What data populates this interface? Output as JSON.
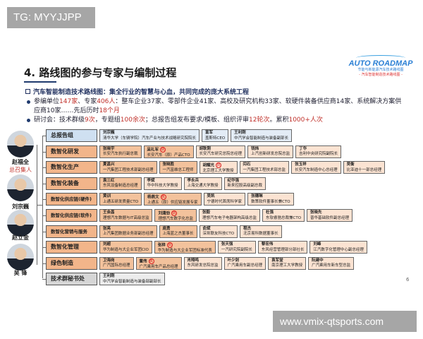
{
  "watermarks": {
    "top_left": "TG: MYYJJPP",
    "bottom_right": "www.vmix-qtsports.com"
  },
  "title": "4. 路线图的参与专家与编制过程",
  "logo": {
    "brand": "AUTO ROADMAP",
    "line1": "节能与新能源汽车技术路线图",
    "line2": "- 汽车智能制造技术路线图 -"
  },
  "bullets": {
    "heading": "汽车智能制造技术路线图：集全行业的智慧与心血，共同完成的庞大系统工程",
    "b1": {
      "p1": "参编单位",
      "v1": "147家",
      "p2": "、专家",
      "v2": "406人",
      "p3": "：整车企业37家、零部件企业41家、高校及研究机构33家、软硬件装备供应商14家、系统解决方案供应商10家……先后历时",
      "v3": "18个月"
    },
    "b2": {
      "p1": "研讨会：技术群级",
      "v1": "9次",
      "p2": "，专题组",
      "v2": "100余次",
      "p3": "；总报告组发布要求/模板、组织评审",
      "v3": "12轮次",
      "p4": "。累积",
      "v4": "1000+人次"
    }
  },
  "leaders": [
    {
      "name": "赵福全",
      "role": "总召集人"
    },
    {
      "name": "刘宗巍"
    },
    {
      "name": "赵立金"
    },
    {
      "name": "吴 锋"
    }
  ],
  "exec_mark": "执",
  "rows": [
    {
      "group": "总报告组",
      "style": "blue",
      "people": [
        {
          "name": "刘宗巍",
          "title": "清华大学（车辆学院）汽车产业与技术战略研究院院长"
        },
        {
          "name": "富军",
          "title": "盖斯特CEO"
        },
        {
          "name": "王利刚",
          "title": "中汽学会智能制造与装备副部长"
        }
      ]
    },
    {
      "group": "数智化研发",
      "people": [
        {
          "name": "张晓宇",
          "title": "长安汽车执行副总裁"
        },
        {
          "name": "吴礼军",
          "title": "长安汽车（原）产品CTO",
          "exec": true
        },
        {
          "name": "胡耿刚",
          "title": "长安汽车研究总院总经理"
        },
        {
          "name": "钱炜",
          "title": "上汽创新研发总院总监"
        },
        {
          "name": "丁华",
          "title": "吉利中央研究院副院长"
        }
      ]
    },
    {
      "group": "数智化生产",
      "people": [
        {
          "name": "夏昌兴",
          "title": "一汽集团工程技术部副总经理"
        },
        {
          "name": "张晓胜",
          "title": "一汽富维总工程师"
        },
        {
          "name": "胡耀光",
          "title": "北京理工大学教授",
          "exec": true
        },
        {
          "name": "闫石",
          "title": "一汽集团工程技术部总监"
        },
        {
          "name": "张玉祥",
          "title": "长安汽车制造中心总经理"
        },
        {
          "name": "吴衡",
          "title": "比亚迪十一部总经理"
        }
      ]
    },
    {
      "group": "数智化装备",
      "people": [
        {
          "name": "袁三红",
          "title": "东风设备制造总经理"
        },
        {
          "name": "李斌",
          "title": "华中科技大学教授"
        },
        {
          "name": "李永兵",
          "title": "上海交通大学教授"
        },
        {
          "name": "纪华强",
          "title": "新来控股高级副总裁"
        }
      ]
    },
    {
      "group": "数智化供应链(硬件)",
      "people": [
        {
          "name": "黄训",
          "title": "上通五研发质量CTO"
        },
        {
          "name": "杨燕文",
          "title": "上通五（原）供应链发展专家",
          "exec": true
        },
        {
          "name": "吴凯",
          "title": "宁德时代首席科学家"
        },
        {
          "name": "张穗琳",
          "title": "数策软件董事长兼CTO"
        }
      ]
    },
    {
      "group": "数智化供应链(软件)",
      "people": [
        {
          "name": "王会昌",
          "title": "理想汽车数据与IT高级总监"
        },
        {
          "name": "刘潇劲",
          "title": "理想汽车数字化总监",
          "exec": true
        },
        {
          "name": "张毅",
          "title": "理想汽车电子电器架构高级总监"
        },
        {
          "name": "杜强",
          "title": "东软睿驰总裁兼CTO"
        },
        {
          "name": "张晓先",
          "title": "普华基础软件副总经理"
        }
      ]
    },
    {
      "group": "数智化营销与服务",
      "people": [
        {
          "name": "张亮",
          "title": "上汽集团数据业务部副总经理"
        },
        {
          "name": "庞勇",
          "title": "上海蓝之杰董事长"
        },
        {
          "name": "俞斌",
          "title": "深圳联友科技CTO"
        },
        {
          "name": "程杰",
          "title": "北京易科数据董事长"
        }
      ]
    },
    {
      "group": "数智化管理",
      "people": [
        {
          "name": "刘超",
          "title": "华为制造与大企业军团CIO"
        },
        {
          "name": "张梓",
          "title": "华为制造与大企业军团标准代表",
          "exec": true
        },
        {
          "name": "张天强",
          "title": "一汽研究院副院长"
        },
        {
          "name": "黎宏伟",
          "title": "东风经营管理部分部社长"
        },
        {
          "name": "刘峰",
          "title": "江汽数字化管理中心副总经理"
        }
      ]
    },
    {
      "group": "绿色制造",
      "people": [
        {
          "name": "卫海岗",
          "title": "广汽国际总经理"
        },
        {
          "name": "董伟",
          "title": "广汽乘用车产品总经理",
          "exec": true
        },
        {
          "name": "肖翔鸣",
          "title": "东风研发总院总监"
        },
        {
          "name": "叶少剑",
          "title": "广汽乘用车副总经理"
        },
        {
          "name": "袁军堂",
          "title": "南京理工大学教授"
        },
        {
          "name": "阮建中",
          "title": "广汽乘用车新车型总监"
        }
      ]
    },
    {
      "group": "技术群秘书处",
      "style": "grey",
      "people": [
        {
          "name": "王利刚",
          "title": "中汽学会智能制造与装备部副部长"
        }
      ]
    }
  ],
  "page_number": "6"
}
